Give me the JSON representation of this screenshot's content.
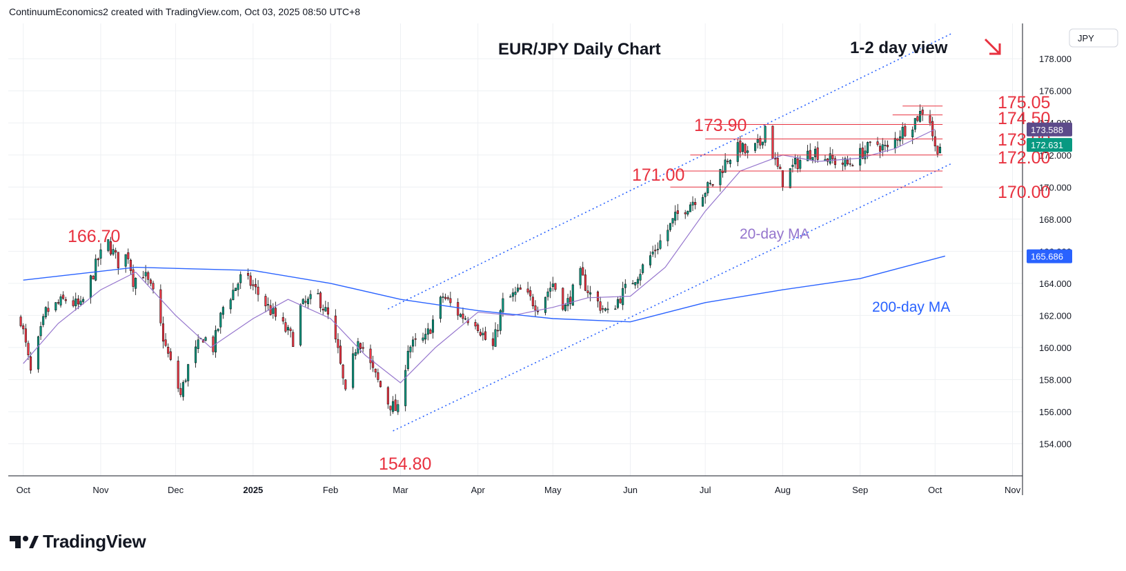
{
  "header": {
    "caption": "ContinuumEconomics2 created with TradingView.com, Oct 03, 2025 08:50 UTC+8"
  },
  "currency_label": "JPY",
  "branding": {
    "logo_text": "TradingView"
  },
  "colors": {
    "up": "#089981",
    "down": "#f23645",
    "level": "#e8313f",
    "ma20": "#9575cd",
    "ma200": "#2962ff",
    "channel": "#2962ff",
    "last_price_tag": "#089981",
    "ma20_tag": "#5c4b8a",
    "ma200_tag": "#2962ff"
  },
  "chart_data": {
    "type": "candlestick",
    "title": "EUR/JPY Daily Chart",
    "subtitle": "1-2 day view",
    "y_axis": {
      "range": [
        152.0,
        180.2
      ],
      "ticks": [
        154.0,
        156.0,
        158.0,
        160.0,
        162.0,
        164.0,
        166.0,
        168.0,
        170.0,
        172.0,
        174.0,
        176.0,
        178.0
      ],
      "tick_labels": [
        "154.000",
        "156.000",
        "158.000",
        "160.000",
        "162.000",
        "164.000",
        "166.000",
        "168.000",
        "170.000",
        "172.000",
        "174.000",
        "176.000",
        "178.000"
      ]
    },
    "x_axis": {
      "tick_labels": [
        "Oct",
        "Nov",
        "Dec",
        "2025",
        "Feb",
        "Mar",
        "Apr",
        "May",
        "Jun",
        "Jul",
        "Aug",
        "Sep",
        "Oct",
        "Nov"
      ],
      "tick_dates": [
        "2024-10-01",
        "2024-11-01",
        "2024-12-01",
        "2025-01-01",
        "2025-02-01",
        "2025-03-01",
        "2025-04-01",
        "2025-05-01",
        "2025-06-01",
        "2025-07-01",
        "2025-08-01",
        "2025-09-01",
        "2025-10-01",
        "2025-11-01"
      ]
    },
    "candle_anchors": [
      {
        "date": "2024-09-30",
        "price": 161.8
      },
      {
        "date": "2024-10-04",
        "price": 158.4
      },
      {
        "date": "2024-10-10",
        "price": 162.2
      },
      {
        "date": "2024-10-18",
        "price": 163.0
      },
      {
        "date": "2024-10-24",
        "price": 162.5
      },
      {
        "date": "2024-10-31",
        "price": 165.5
      },
      {
        "date": "2024-11-04",
        "price": 166.5
      },
      {
        "date": "2024-11-08",
        "price": 165.3
      },
      {
        "date": "2024-11-12",
        "price": 165.8
      },
      {
        "date": "2024-11-14",
        "price": 164.2
      },
      {
        "date": "2024-11-18",
        "price": 164.7
      },
      {
        "date": "2024-11-22",
        "price": 163.3
      },
      {
        "date": "2024-11-27",
        "price": 160.0
      },
      {
        "date": "2024-12-03",
        "price": 157.0
      },
      {
        "date": "2024-12-06",
        "price": 158.8
      },
      {
        "date": "2024-12-12",
        "price": 160.7
      },
      {
        "date": "2024-12-16",
        "price": 160.0
      },
      {
        "date": "2024-12-20",
        "price": 162.5
      },
      {
        "date": "2024-12-27",
        "price": 164.3
      },
      {
        "date": "2024-12-31",
        "price": 164.0
      },
      {
        "date": "2025-01-07",
        "price": 162.5
      },
      {
        "date": "2025-01-10",
        "price": 161.9
      },
      {
        "date": "2025-01-17",
        "price": 160.5
      },
      {
        "date": "2025-01-20",
        "price": 162.5
      },
      {
        "date": "2025-01-27",
        "price": 163.2
      },
      {
        "date": "2025-01-31",
        "price": 161.9
      },
      {
        "date": "2025-02-04",
        "price": 159.7
      },
      {
        "date": "2025-02-07",
        "price": 157.0
      },
      {
        "date": "2025-02-12",
        "price": 160.7
      },
      {
        "date": "2025-02-18",
        "price": 158.5
      },
      {
        "date": "2025-02-24",
        "price": 156.6
      },
      {
        "date": "2025-02-28",
        "price": 156.0
      },
      {
        "date": "2025-03-04",
        "price": 160.0
      },
      {
        "date": "2025-03-11",
        "price": 160.5
      },
      {
        "date": "2025-03-18",
        "price": 163.2
      },
      {
        "date": "2025-03-25",
        "price": 162.0
      },
      {
        "date": "2025-03-31",
        "price": 161.7
      },
      {
        "date": "2025-04-04",
        "price": 160.5
      },
      {
        "date": "2025-04-07",
        "price": 160.0
      },
      {
        "date": "2025-04-11",
        "price": 162.8
      },
      {
        "date": "2025-04-18",
        "price": 163.5
      },
      {
        "date": "2025-04-25",
        "price": 162.6
      },
      {
        "date": "2025-05-01",
        "price": 164.0
      },
      {
        "date": "2025-05-06",
        "price": 162.5
      },
      {
        "date": "2025-05-12",
        "price": 164.5
      },
      {
        "date": "2025-05-16",
        "price": 163.3
      },
      {
        "date": "2025-05-23",
        "price": 162.1
      },
      {
        "date": "2025-05-30",
        "price": 163.6
      },
      {
        "date": "2025-06-06",
        "price": 165.0
      },
      {
        "date": "2025-06-13",
        "price": 166.6
      },
      {
        "date": "2025-06-20",
        "price": 168.3
      },
      {
        "date": "2025-06-27",
        "price": 169.3
      },
      {
        "date": "2025-07-04",
        "price": 170.2
      },
      {
        "date": "2025-07-10",
        "price": 171.8
      },
      {
        "date": "2025-07-15",
        "price": 172.5
      },
      {
        "date": "2025-07-18",
        "price": 172.0
      },
      {
        "date": "2025-07-23",
        "price": 172.7
      },
      {
        "date": "2025-07-25",
        "price": 173.8
      },
      {
        "date": "2025-07-29",
        "price": 171.5
      },
      {
        "date": "2025-08-01",
        "price": 170.4
      },
      {
        "date": "2025-08-06",
        "price": 171.4
      },
      {
        "date": "2025-08-13",
        "price": 172.3
      },
      {
        "date": "2025-08-20",
        "price": 171.7
      },
      {
        "date": "2025-08-27",
        "price": 171.4
      },
      {
        "date": "2025-09-03",
        "price": 172.3
      },
      {
        "date": "2025-09-08",
        "price": 172.7
      },
      {
        "date": "2025-09-12",
        "price": 172.3
      },
      {
        "date": "2025-09-17",
        "price": 173.4
      },
      {
        "date": "2025-09-22",
        "price": 174.0
      },
      {
        "date": "2025-09-26",
        "price": 174.8
      },
      {
        "date": "2025-09-29",
        "price": 174.2
      },
      {
        "date": "2025-10-01",
        "price": 172.4
      },
      {
        "date": "2025-10-03",
        "price": 172.63
      }
    ],
    "moving_averages": [
      {
        "name": "20-day MA",
        "last": 173.588,
        "points": [
          {
            "date": "2024-10-01",
            "value": 159.0
          },
          {
            "date": "2024-10-15",
            "value": 161.5
          },
          {
            "date": "2024-11-01",
            "value": 163.6
          },
          {
            "date": "2024-11-15",
            "value": 164.7
          },
          {
            "date": "2024-12-01",
            "value": 162.0
          },
          {
            "date": "2024-12-15",
            "value": 160.0
          },
          {
            "date": "2025-01-01",
            "value": 161.8
          },
          {
            "date": "2025-01-15",
            "value": 163.0
          },
          {
            "date": "2025-02-01",
            "value": 161.8
          },
          {
            "date": "2025-02-15",
            "value": 159.5
          },
          {
            "date": "2025-03-01",
            "value": 157.8
          },
          {
            "date": "2025-03-15",
            "value": 160.0
          },
          {
            "date": "2025-04-01",
            "value": 162.2
          },
          {
            "date": "2025-04-15",
            "value": 162.0
          },
          {
            "date": "2025-05-01",
            "value": 162.5
          },
          {
            "date": "2025-05-15",
            "value": 163.1
          },
          {
            "date": "2025-06-01",
            "value": 163.2
          },
          {
            "date": "2025-06-15",
            "value": 165.0
          },
          {
            "date": "2025-07-01",
            "value": 168.5
          },
          {
            "date": "2025-07-15",
            "value": 171.0
          },
          {
            "date": "2025-08-01",
            "value": 172.0
          },
          {
            "date": "2025-08-15",
            "value": 171.6
          },
          {
            "date": "2025-09-01",
            "value": 171.8
          },
          {
            "date": "2025-09-15",
            "value": 172.4
          },
          {
            "date": "2025-10-01",
            "value": 173.6
          }
        ]
      },
      {
        "name": "200-day MA",
        "last": 165.686,
        "points": [
          {
            "date": "2024-10-01",
            "value": 164.2
          },
          {
            "date": "2024-11-15",
            "value": 165.0
          },
          {
            "date": "2025-01-01",
            "value": 164.8
          },
          {
            "date": "2025-02-01",
            "value": 164.0
          },
          {
            "date": "2025-03-01",
            "value": 163.0
          },
          {
            "date": "2025-04-01",
            "value": 162.3
          },
          {
            "date": "2025-05-01",
            "value": 161.8
          },
          {
            "date": "2025-06-01",
            "value": 161.6
          },
          {
            "date": "2025-07-01",
            "value": 162.8
          },
          {
            "date": "2025-08-01",
            "value": 163.6
          },
          {
            "date": "2025-09-01",
            "value": 164.3
          },
          {
            "date": "2025-10-05",
            "value": 165.7
          }
        ]
      }
    ],
    "channel": [
      {
        "start": {
          "date": "2025-02-24",
          "price": 162.4
        },
        "end": {
          "date": "2025-10-08",
          "price": 179.6
        }
      },
      {
        "start": {
          "date": "2025-02-26",
          "price": 154.8
        },
        "end": {
          "date": "2025-10-08",
          "price": 171.5
        }
      }
    ],
    "levels": [
      {
        "label": "175.05",
        "price": 175.05,
        "line_from": "2025-09-18",
        "line_to": "2025-10-04"
      },
      {
        "label": "174.50",
        "price": 174.5,
        "line_from": "2025-09-14",
        "line_to": "2025-10-04"
      },
      {
        "label": "173.90",
        "price": 173.9,
        "line_from": "2025-07-01",
        "line_to": "2025-10-04"
      },
      {
        "label": "173.00",
        "price": 173.0,
        "line_from": "2025-07-01",
        "line_to": "2025-10-04"
      },
      {
        "label": "172.00",
        "price": 172.0,
        "line_from": "2025-06-25",
        "line_to": "2025-10-04"
      },
      {
        "label": "171.00",
        "price": 171.0,
        "line_from": "2025-06-20",
        "line_to": "2025-10-04"
      },
      {
        "label": "170.00",
        "price": 170.0,
        "line_from": "2025-06-17",
        "line_to": "2025-10-04"
      }
    ],
    "swing_labels": [
      {
        "label": "166.70",
        "price": 166.7
      },
      {
        "label": "154.80",
        "price": 154.8
      }
    ],
    "price_tags": [
      {
        "label": "173.588",
        "price": 173.588,
        "kind": "ma20"
      },
      {
        "label": "172.631",
        "price": 172.631,
        "kind": "last"
      },
      {
        "label": "165.686",
        "price": 165.686,
        "kind": "ma200"
      }
    ],
    "grid": true
  }
}
